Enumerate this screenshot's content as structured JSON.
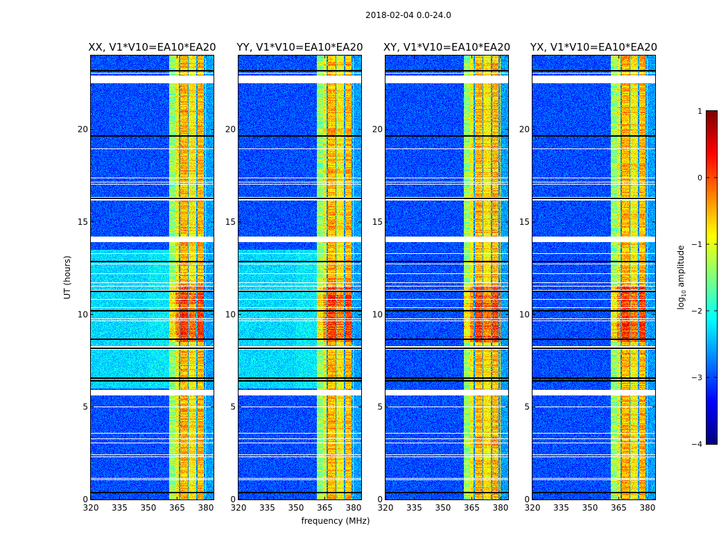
{
  "suptitle": "2018-02-04 0.0-24.0",
  "chart_data": {
    "type": "heatmap",
    "xlabel": "frequency (MHz)",
    "ylabel": "UT (hours)",
    "xlim": [
      320,
      384
    ],
    "ylim": [
      0,
      24
    ],
    "xticks": [
      320,
      335,
      350,
      365,
      380
    ],
    "yticks": [
      0,
      5,
      10,
      15,
      20
    ],
    "panels": [
      {
        "title": "XX, V1*V10=EA10*EA20",
        "bright_background": true
      },
      {
        "title": "YY, V1*V10=EA10*EA20",
        "bright_background": true
      },
      {
        "title": "XY, V1*V10=EA10*EA20",
        "bright_background": false
      },
      {
        "title": "YX, V1*V10=EA10*EA20",
        "bright_background": false
      }
    ],
    "colorbar": {
      "label": "log",
      "label_sub": "10",
      "label_rest": " amplitude",
      "colormap": "jet",
      "range": [
        -4,
        1
      ],
      "ticks": [
        1,
        0,
        -1,
        -2,
        -3,
        -4
      ],
      "tick_labels": [
        "1",
        "0",
        "−1",
        "−2",
        "−3",
        "−4"
      ]
    },
    "levels": {
      "background": -3.0,
      "bright_background": -2.3,
      "bright_background_hours": [
        6,
        13.5
      ],
      "rfi_band_mhz": [
        361,
        380
      ],
      "rfi_subbands": [
        {
          "range": [
            361,
            364
          ],
          "value": -1.4
        },
        {
          "range": [
            364,
            366
          ],
          "value": -0.9
        },
        {
          "range": [
            366.5,
            370.5
          ],
          "value": -0.5
        },
        {
          "range": [
            371,
            375
          ],
          "value": -0.8
        },
        {
          "range": [
            375.5,
            379
          ],
          "value": -0.5
        },
        {
          "range": [
            380,
            384
          ],
          "value": -2.6
        }
      ],
      "channel_gaps_mhz": [
        366.2,
        370.8,
        375.2,
        379.3
      ],
      "strong_rfi_hours": [
        8.5,
        11.5
      ],
      "strong_rfi_boost": 0.6
    },
    "flagged_hours": [
      [
        22.55,
        22.9
      ],
      [
        5.68,
        5.92
      ],
      [
        13.95,
        14.2
      ],
      [
        8.15,
        8.3
      ],
      [
        16.2,
        16.35
      ]
    ],
    "dropout_hours": [
      23.2,
      19.7,
      16.3,
      11.3,
      10.25,
      8.7,
      8.2,
      6.6,
      6.45,
      0.4,
      12.9
    ]
  }
}
